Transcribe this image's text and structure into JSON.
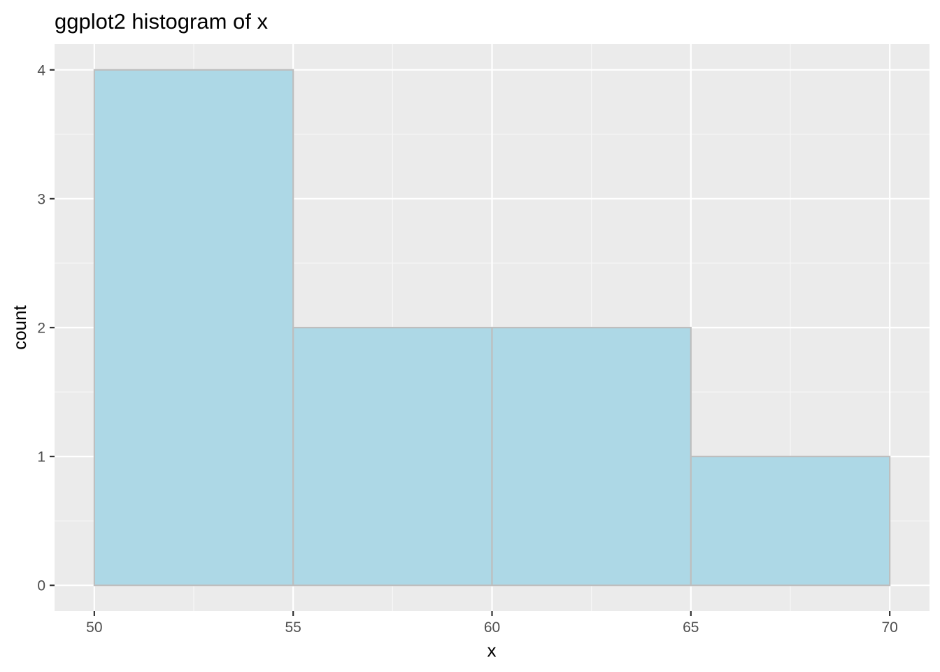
{
  "chart_data": {
    "type": "bar",
    "variant": "histogram",
    "title": "ggplot2 histogram of x",
    "xlabel": "x",
    "ylabel": "count",
    "bins": [
      {
        "x_start": 50,
        "x_end": 55,
        "count": 4
      },
      {
        "x_start": 55,
        "x_end": 60,
        "count": 2
      },
      {
        "x_start": 60,
        "x_end": 65,
        "count": 2
      },
      {
        "x_start": 65,
        "x_end": 70,
        "count": 1
      }
    ],
    "xlim": [
      49,
      71
    ],
    "ylim": [
      -0.2,
      4.2
    ],
    "x_ticks": [
      50,
      55,
      60,
      65,
      70
    ],
    "y_ticks": [
      0,
      1,
      2,
      3,
      4
    ],
    "x_minor_ticks": [
      52.5,
      57.5,
      62.5,
      67.5
    ],
    "y_minor_ticks": [
      0.5,
      1.5,
      2.5,
      3.5
    ],
    "grid": true,
    "legend": "none",
    "colors": {
      "bar_fill": "#add8e6",
      "bar_outline": "#bebebe",
      "panel_background": "#ebebeb",
      "grid_major": "#ffffff",
      "grid_minor": "#f7f7f7",
      "tick_label": "#4d4d4d",
      "tick_mark": "#333333"
    }
  }
}
